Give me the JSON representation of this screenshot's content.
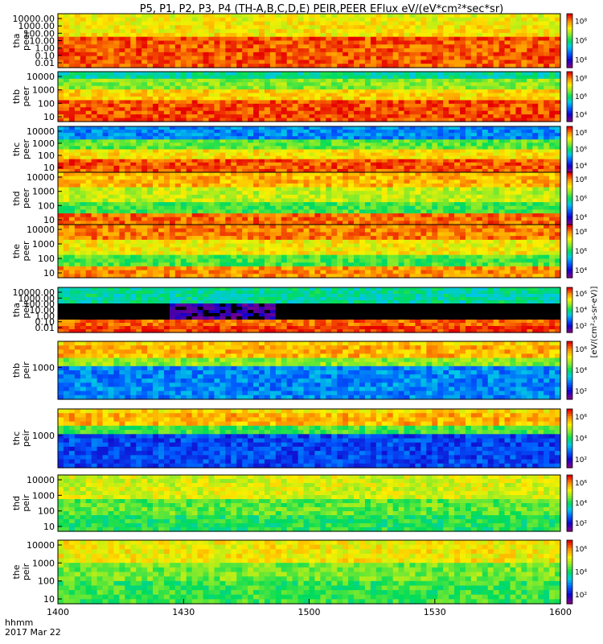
{
  "chart_data": {
    "type": "heatmap",
    "title": "P5, P1, P2, P3, P4 (TH-A,B,C,D,E) PEIR,PEER EFlux eV/(eV*cm²*sec*sr)",
    "x_axis": {
      "range": [
        1400,
        1600
      ],
      "ticks": [
        "1400",
        "1430",
        "1500",
        "1530",
        "1600"
      ],
      "corner_label_line1": "hhmm",
      "corner_label_line2": "2017 Mar 22"
    },
    "colorbar_label": "[eV/(cm²-s-sr-eV)]",
    "panels": [
      {
        "name": "tha peer",
        "ylabel_probe": "tha",
        "ylabel_type": "peer",
        "scale": "log",
        "yticks": [
          "10000.00",
          "1000.00",
          "100.00",
          "10.00",
          "1.00",
          "0.10",
          "0.01"
        ],
        "cbar_ticks": [
          "10⁸",
          "10⁶",
          "10⁴"
        ]
      },
      {
        "name": "thb peer",
        "ylabel_probe": "thb",
        "ylabel_type": "peer",
        "scale": "log",
        "yticks": [
          "10000",
          "1000",
          "100",
          "10"
        ],
        "cbar_ticks": [
          "10⁸",
          "10⁶",
          "10⁴"
        ]
      },
      {
        "name": "thc peer",
        "ylabel_probe": "thc",
        "ylabel_type": "peer",
        "scale": "log",
        "yticks": [
          "10000",
          "1000",
          "100",
          "10"
        ],
        "cbar_ticks": [
          "10⁸",
          "10⁶",
          "10⁴"
        ]
      },
      {
        "name": "thd peer",
        "ylabel_probe": "thd",
        "ylabel_type": "peer",
        "scale": "log",
        "yticks": [
          "10000",
          "1000",
          "100",
          "10"
        ],
        "cbar_ticks": [
          "10⁸",
          "10⁶",
          "10⁴"
        ]
      },
      {
        "name": "the peer",
        "ylabel_probe": "the",
        "ylabel_type": "peer",
        "scale": "log",
        "yticks": [
          "10000",
          "1000",
          "100",
          "10"
        ],
        "cbar_ticks": [
          "10⁸",
          "10⁶",
          "10⁴"
        ]
      },
      {
        "name": "tha peir",
        "ylabel_probe": "tha",
        "ylabel_type": "peir",
        "scale": "log",
        "yticks": [
          "10000.00",
          "1000.00",
          "100.00",
          "10.00",
          "1.00",
          "0.10",
          "0.01"
        ],
        "cbar_ticks": [
          "10⁶",
          "10⁴",
          "10²"
        ]
      },
      {
        "name": "thb peir",
        "ylabel_probe": "thb",
        "ylabel_type": "peir",
        "scale": "log",
        "yticks": [
          "1000"
        ],
        "cbar_ticks": [
          "10⁶",
          "10⁴",
          "10²"
        ]
      },
      {
        "name": "thc peir",
        "ylabel_probe": "thc",
        "ylabel_type": "peir",
        "scale": "log",
        "yticks": [
          "1000"
        ],
        "cbar_ticks": [
          "10⁶",
          "10⁴",
          "10²"
        ]
      },
      {
        "name": "thd peir",
        "ylabel_probe": "thd",
        "ylabel_type": "peir",
        "scale": "log",
        "yticks": [
          "10000",
          "1000",
          "100",
          "10"
        ],
        "cbar_ticks": [
          "10⁶",
          "10⁴",
          "10²"
        ]
      },
      {
        "name": "the peir",
        "ylabel_probe": "the",
        "ylabel_type": "peir",
        "scale": "log",
        "yticks": [
          "10000",
          "1000",
          "100",
          "10"
        ],
        "cbar_ticks": [
          "10⁶",
          "10⁴",
          "10²"
        ]
      }
    ]
  }
}
